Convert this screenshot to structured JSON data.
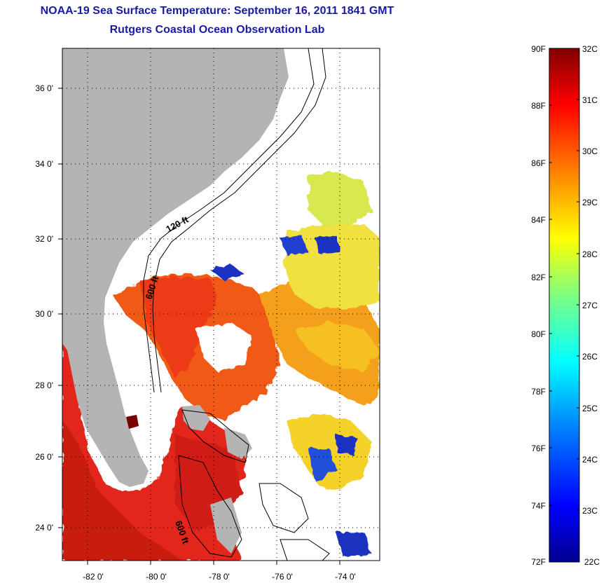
{
  "title_line1": "NOAA-19 Sea Surface Temperature:  September 16, 2011 1841 GMT",
  "title_line2": "Rutgers Coastal Ocean Observation Lab",
  "map": {
    "lon_ticks": [
      "-82 0'",
      "-80 0'",
      "-78 0'",
      "-76 0'",
      "-74 0'"
    ],
    "lat_ticks": [
      "36 0'",
      "34 0'",
      "32 0'",
      "30 0'",
      "28 0'",
      "26 0'",
      "24 0'"
    ],
    "contour_labels": [
      "120 ft",
      "600 ft",
      "600 ft"
    ],
    "colors": {
      "land": "#b4b4b4",
      "frame": "#000000"
    }
  },
  "colorbar": {
    "fahrenheit_labels": [
      "90F",
      "88F",
      "86F",
      "84F",
      "82F",
      "80F",
      "78F",
      "76F",
      "74F",
      "72F"
    ],
    "celsius_labels": [
      "32C",
      "31C",
      "30C",
      "29C",
      "28C",
      "27C",
      "26C",
      "25C",
      "24C",
      "23C",
      "22C"
    ],
    "stops": [
      "#00008f",
      "#0000ff",
      "#0080ff",
      "#00ffff",
      "#80ff80",
      "#ffff00",
      "#ff8000",
      "#ff0000",
      "#800000"
    ]
  }
}
